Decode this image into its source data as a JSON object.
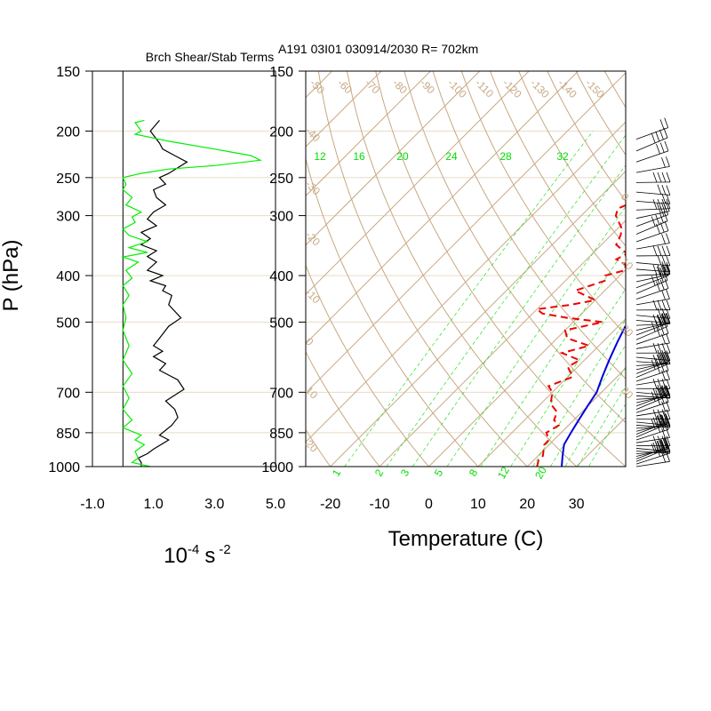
{
  "chart_data": [
    {
      "type": "line",
      "title": "Brch Shear/Stab Terms",
      "ylabel": "P (hPa)",
      "xlabel_base": "10",
      "xlabel_exp": "-4",
      "xlabel_unit": "s",
      "xlabel_unit_exp": "-2",
      "xlim": [
        -1.0,
        5.0
      ],
      "x_tick_labels": [
        "-1.0",
        "1.0",
        "3.0",
        "5.0"
      ],
      "x_ticks": [
        -1.0,
        1.0,
        3.0,
        5.0
      ],
      "ylim": [
        1000,
        150
      ],
      "y_scale": "log",
      "y_ticks": [
        150,
        200,
        250,
        300,
        400,
        500,
        700,
        850,
        1000
      ],
      "y_tick_labels": [
        "150",
        "200",
        "250",
        "300",
        "400",
        "500",
        "700",
        "850",
        "1000"
      ],
      "grid_horizontal": true,
      "series": [
        {
          "color": "#000000",
          "points": [
            [
              1.2,
              190
            ],
            [
              0.9,
              200
            ],
            [
              1.2,
              212
            ],
            [
              1.3,
              218
            ],
            [
              1.7,
              225
            ],
            [
              2.1,
              232
            ],
            [
              1.5,
              245
            ],
            [
              1.2,
              250
            ],
            [
              1.4,
              258
            ],
            [
              1.0,
              265
            ],
            [
              1.1,
              275
            ],
            [
              1.4,
              285
            ],
            [
              1.0,
              295
            ],
            [
              0.8,
              305
            ],
            [
              1.1,
              315
            ],
            [
              0.6,
              325
            ],
            [
              0.9,
              335
            ],
            [
              0.6,
              345
            ],
            [
              1.1,
              355
            ],
            [
              0.8,
              365
            ],
            [
              1.1,
              375
            ],
            [
              0.8,
              390
            ],
            [
              1.3,
              400
            ],
            [
              0.9,
              410
            ],
            [
              1.4,
              420
            ],
            [
              1.3,
              430
            ],
            [
              1.6,
              440
            ],
            [
              1.5,
              460
            ],
            [
              1.9,
              490
            ],
            [
              1.5,
              510
            ],
            [
              1.2,
              540
            ],
            [
              1.0,
              560
            ],
            [
              1.3,
              575
            ],
            [
              1.0,
              590
            ],
            [
              1.4,
              610
            ],
            [
              1.2,
              630
            ],
            [
              1.8,
              660
            ],
            [
              2.0,
              690
            ],
            [
              1.4,
              730
            ],
            [
              1.7,
              760
            ],
            [
              1.8,
              790
            ],
            [
              1.6,
              820
            ],
            [
              1.2,
              860
            ],
            [
              1.5,
              880
            ],
            [
              1.0,
              920
            ],
            [
              0.8,
              940
            ],
            [
              0.5,
              960
            ],
            [
              0.6,
              980
            ],
            [
              0.6,
              1000
            ]
          ]
        },
        {
          "color": "#00ee00",
          "points": [
            [
              0.7,
              190
            ],
            [
              0.4,
              192
            ],
            [
              0.6,
              200
            ],
            [
              0.4,
              203
            ],
            [
              1.5,
              210
            ],
            [
              3.0,
              218
            ],
            [
              4.2,
              225
            ],
            [
              4.5,
              230
            ],
            [
              3.0,
              236
            ],
            [
              1.5,
              240
            ],
            [
              0.6,
              245
            ],
            [
              0.0,
              250
            ],
            [
              0.1,
              258
            ],
            [
              0.0,
              265
            ],
            [
              0.3,
              275
            ],
            [
              0.1,
              285
            ],
            [
              0.6,
              295
            ],
            [
              0.3,
              302
            ],
            [
              0.4,
              310
            ],
            [
              0.0,
              320
            ],
            [
              0.2,
              330
            ],
            [
              0.8,
              340
            ],
            [
              0.2,
              350
            ],
            [
              0.8,
              358
            ],
            [
              0.0,
              366
            ],
            [
              0.5,
              375
            ],
            [
              0.1,
              390
            ],
            [
              0.3,
              405
            ],
            [
              0.0,
              420
            ],
            [
              0.2,
              440
            ],
            [
              0.0,
              460
            ],
            [
              0.1,
              490
            ],
            [
              0.0,
              520
            ],
            [
              0.2,
              560
            ],
            [
              0.0,
              600
            ],
            [
              0.3,
              640
            ],
            [
              0.0,
              680
            ],
            [
              0.2,
              720
            ],
            [
              0.0,
              760
            ],
            [
              0.3,
              800
            ],
            [
              0.0,
              830
            ],
            [
              0.6,
              860
            ],
            [
              0.4,
              880
            ],
            [
              0.7,
              900
            ],
            [
              0.4,
              930
            ],
            [
              0.5,
              960
            ],
            [
              0.3,
              980
            ],
            [
              0.9,
              1000
            ]
          ]
        }
      ]
    },
    {
      "type": "line",
      "subtype": "skew-t",
      "title": "A191 03I01 030914/2030 R= 702km",
      "xlabel": "Temperature (C)",
      "xlim": [
        -25,
        40
      ],
      "x_ticks": [
        -20,
        -10,
        0,
        10,
        20,
        30
      ],
      "x_tick_labels": [
        "-20",
        "-10",
        "0",
        "10",
        "20",
        "30"
      ],
      "ylim": [
        1000,
        150
      ],
      "y_scale": "log",
      "y_ticks": [
        150,
        200,
        250,
        300,
        400,
        500,
        700,
        850,
        1000
      ],
      "y_tick_labels": [
        "150",
        "200",
        "250",
        "300",
        "400",
        "500",
        "700",
        "850",
        "1000"
      ],
      "isotherm_labels_top": [
        "-50",
        "-60",
        "-70",
        "-80",
        "-90",
        "-100",
        "-110",
        "-120",
        "-130",
        "-140",
        "-150"
      ],
      "isotherm_labels_left": [
        "-40",
        "-30",
        "-20",
        "-10",
        "0",
        "10",
        "20"
      ],
      "isotherm_labels_right": [
        "0",
        "10",
        "20",
        "30"
      ],
      "mixing_ratio_labels_top": [
        "12",
        "16",
        "20",
        "24",
        "28",
        "32"
      ],
      "mixing_ratio_labels_bottom": [
        "1",
        "2",
        "3",
        "5",
        "8",
        "12",
        "20"
      ],
      "colors": {
        "isotherm": "#c8a882",
        "mixing_ratio": "#00dd00",
        "temperature": "#0000dd",
        "dewpoint": "#ee0000"
      },
      "series": [
        {
          "color": "#0000dd",
          "points": [
            [
              27,
              1000
            ],
            [
              25,
              950
            ],
            [
              23,
              900
            ],
            [
              22,
              850
            ],
            [
              21,
              800
            ],
            [
              20,
              750
            ],
            [
              19,
              700
            ],
            [
              17,
              650
            ],
            [
              15,
              600
            ],
            [
              13,
              550
            ],
            [
              11,
              500
            ],
            [
              9,
              450
            ],
            [
              7,
              400
            ],
            [
              4,
              350
            ],
            [
              1,
              300
            ],
            [
              -3,
              250
            ],
            [
              -6,
              220
            ],
            [
              -10,
              200
            ],
            [
              -14,
              180
            ]
          ]
        },
        {
          "color": "#ee0000",
          "dashed": true,
          "points": [
            [
              22,
              1000
            ],
            [
              21,
              970
            ],
            [
              21,
              950
            ],
            [
              19,
              900
            ],
            [
              19,
              880
            ],
            [
              17,
              850
            ],
            [
              18,
              820
            ],
            [
              16,
              800
            ],
            [
              15,
              770
            ],
            [
              12,
              740
            ],
            [
              10,
              700
            ],
            [
              8,
              680
            ],
            [
              11,
              650
            ],
            [
              8,
              620
            ],
            [
              9,
              600
            ],
            [
              4,
              580
            ],
            [
              8,
              560
            ],
            [
              2,
              540
            ],
            [
              0,
              520
            ],
            [
              6,
              500
            ],
            [
              -2,
              490
            ],
            [
              -8,
              480
            ],
            [
              -10,
              470
            ],
            [
              -4,
              460
            ],
            [
              0,
              450
            ],
            [
              -6,
              430
            ],
            [
              -2,
              410
            ],
            [
              -3,
              400
            ],
            [
              0,
              390
            ],
            [
              -1,
              380
            ],
            [
              -4,
              370
            ],
            [
              -3,
              360
            ],
            [
              -7,
              345
            ],
            [
              -8,
              330
            ],
            [
              -9,
              320
            ],
            [
              -13,
              300
            ],
            [
              -14,
              290
            ],
            [
              -12,
              280
            ],
            [
              -15,
              270
            ],
            [
              -14,
              260
            ],
            [
              -18,
              250
            ],
            [
              -19,
              240
            ],
            [
              -21,
              230
            ],
            [
              -22,
              220
            ],
            [
              -26,
              210
            ],
            [
              -28,
              200
            ]
          ]
        }
      ],
      "wind_barbs": "right-side barbs at each level"
    }
  ]
}
